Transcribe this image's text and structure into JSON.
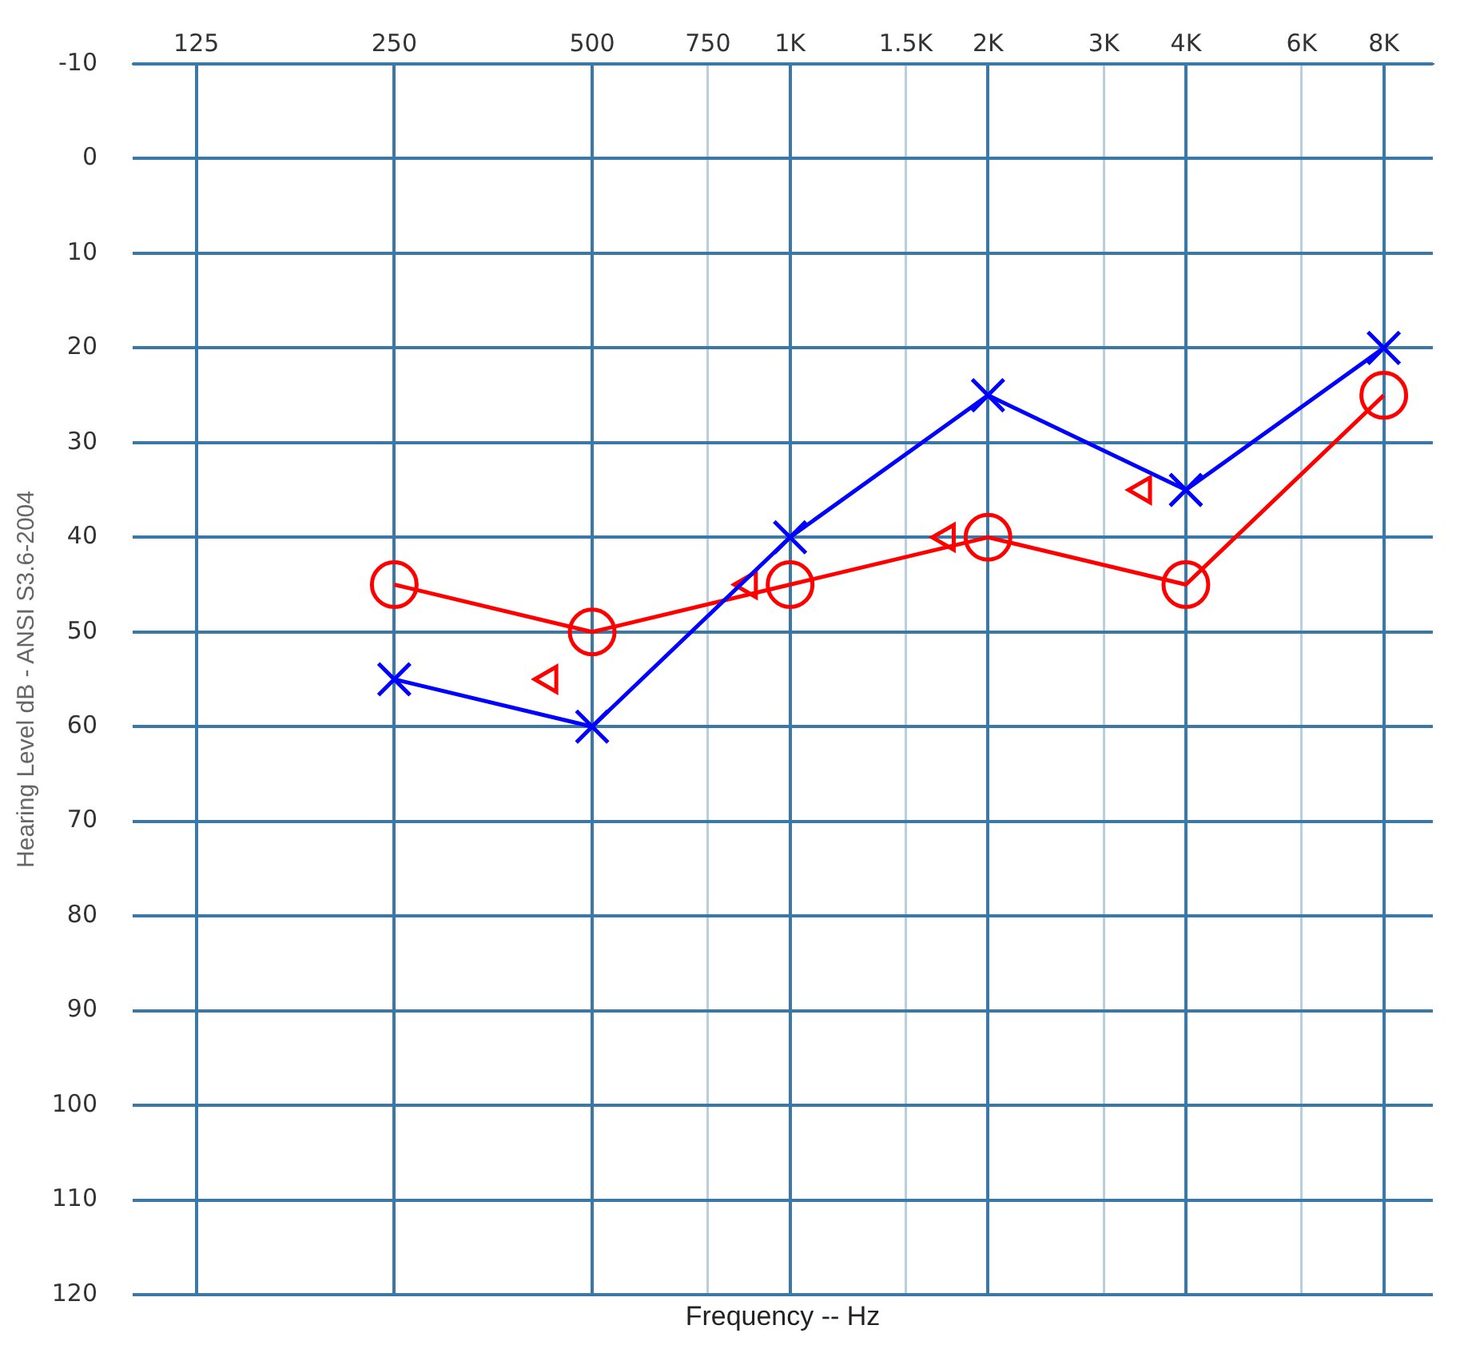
{
  "chart_data": {
    "type": "line",
    "xlabel": "Frequency -- Hz",
    "ylabel": "Hearing Level dB - ANSI S3.6-2004",
    "log": "x",
    "grid": true,
    "legend": false,
    "line_style": "solid",
    "xlim": [
      100,
      9500
    ],
    "xticks": [
      125,
      250,
      500,
      {
        "value": 750,
        "label": "750"
      },
      {
        "value": 1000,
        "label": "1K"
      },
      {
        "value": 1500,
        "label": "1.5K"
      },
      {
        "value": 2000,
        "label": "2K"
      },
      {
        "value": 3000,
        "label": "3K"
      },
      {
        "value": 4000,
        "label": "4K"
      },
      {
        "value": 6000,
        "label": "6K"
      },
      {
        "value": 8000,
        "label": "8K"
      }
    ],
    "ylim": [
      120,
      -10
    ],
    "yticks": [
      -10,
      0,
      10,
      20,
      30,
      40,
      50,
      60,
      70,
      80,
      90,
      100,
      110,
      120
    ],
    "x": [
      250,
      500,
      1000,
      2000,
      4000,
      8000
    ],
    "series": [
      {
        "type": "line",
        "color": "#0000ff",
        "marker": "cross",
        "values": [
          55,
          60,
          40,
          25,
          35,
          20
        ]
      },
      {
        "type": "line",
        "color": "#ff0000",
        "marker": "circle",
        "values": [
          45,
          50,
          45,
          40,
          45,
          25
        ]
      },
      {
        "type": "scatter",
        "color": "#ff0000",
        "marker": "triangle",
        "x": [
          430,
          865,
          1730,
          3440
        ],
        "values": [
          55,
          45,
          40,
          35
        ]
      }
    ]
  }
}
